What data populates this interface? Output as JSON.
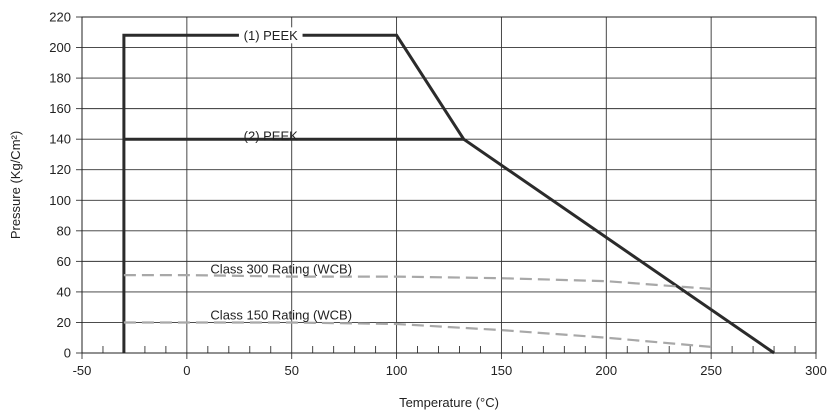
{
  "chart_data": {
    "type": "line",
    "xlabel": "Temperature (°C)",
    "ylabel": "Pressure (Kg/Cm²)",
    "xlim": [
      -50,
      300
    ],
    "ylim": [
      0,
      220
    ],
    "x_ticks": [
      -50,
      0,
      50,
      100,
      150,
      200,
      250,
      300
    ],
    "y_ticks": [
      0,
      20,
      40,
      60,
      80,
      100,
      120,
      140,
      160,
      180,
      200,
      220
    ],
    "grid": true,
    "series": [
      {
        "name": "(1) PEEK",
        "style": "solid",
        "color": "#2b2b2b",
        "points": [
          [
            -30,
            0
          ],
          [
            -30,
            208
          ],
          [
            100,
            208
          ],
          [
            132,
            140
          ],
          [
            280,
            0
          ]
        ]
      },
      {
        "name": "(2) PEEK",
        "style": "solid",
        "color": "#2b2b2b",
        "points": [
          [
            -30,
            140
          ],
          [
            132,
            140
          ]
        ]
      },
      {
        "name": "Class 300 Rating (WCB)",
        "style": "dashed",
        "color": "#a8a8a8",
        "points": [
          [
            -30,
            51
          ],
          [
            0,
            51
          ],
          [
            50,
            50
          ],
          [
            100,
            50
          ],
          [
            150,
            49
          ],
          [
            200,
            47
          ],
          [
            250,
            42
          ]
        ]
      },
      {
        "name": "Class 150 Rating (WCB)",
        "style": "dashed",
        "color": "#a8a8a8",
        "points": [
          [
            -30,
            20
          ],
          [
            0,
            20
          ],
          [
            50,
            20
          ],
          [
            100,
            19
          ],
          [
            150,
            15
          ],
          [
            200,
            10
          ],
          [
            250,
            4
          ]
        ]
      }
    ],
    "annotations": [
      {
        "text": "(1) PEEK",
        "x": 40,
        "y": 208,
        "anchor": "middle",
        "leader": true
      },
      {
        "text": "(2) PEEK",
        "x": 40,
        "y": 142,
        "anchor": "middle",
        "leader": false
      },
      {
        "text": "Class 300 Rating (WCB)",
        "x": 45,
        "y": 55,
        "anchor": "middle",
        "leader": false
      },
      {
        "text": "Class 150 Rating (WCB)",
        "x": 45,
        "y": 25,
        "anchor": "middle",
        "leader": false
      }
    ]
  }
}
